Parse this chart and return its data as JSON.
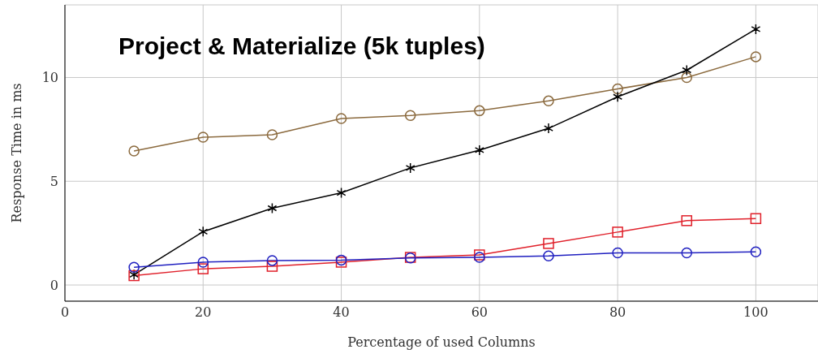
{
  "chart_data": {
    "type": "line",
    "title": "Project & Materialize (5k tuples)",
    "xlabel": "Percentage of used Columns",
    "ylabel": "Response Time in ms",
    "x": [
      10,
      20,
      30,
      40,
      50,
      60,
      70,
      80,
      90,
      100
    ],
    "series": [
      {
        "color": "#8b6a3e",
        "marker": "circle",
        "values": [
          6.46,
          7.12,
          7.24,
          8.02,
          8.17,
          8.4,
          8.87,
          9.45,
          10.0,
          11.0
        ]
      },
      {
        "color": "#000000",
        "marker": "cross",
        "values": [
          0.5,
          2.57,
          3.7,
          4.44,
          5.64,
          6.5,
          7.55,
          9.07,
          10.35,
          12.33
        ]
      },
      {
        "color": "#e0202a",
        "marker": "square",
        "values": [
          0.45,
          0.78,
          0.9,
          1.1,
          1.33,
          1.45,
          2.0,
          2.55,
          3.1,
          3.2
        ]
      },
      {
        "color": "#2020c0",
        "marker": "circle",
        "values": [
          0.85,
          1.1,
          1.18,
          1.2,
          1.3,
          1.33,
          1.4,
          1.55,
          1.55,
          1.6
        ]
      }
    ],
    "xlim": [
      0,
      109
    ],
    "ylim": [
      -0.78,
      13.5
    ],
    "xticks": [
      0,
      20,
      40,
      60,
      80,
      100
    ],
    "yticks": [
      0,
      5,
      10
    ],
    "grid": true
  }
}
